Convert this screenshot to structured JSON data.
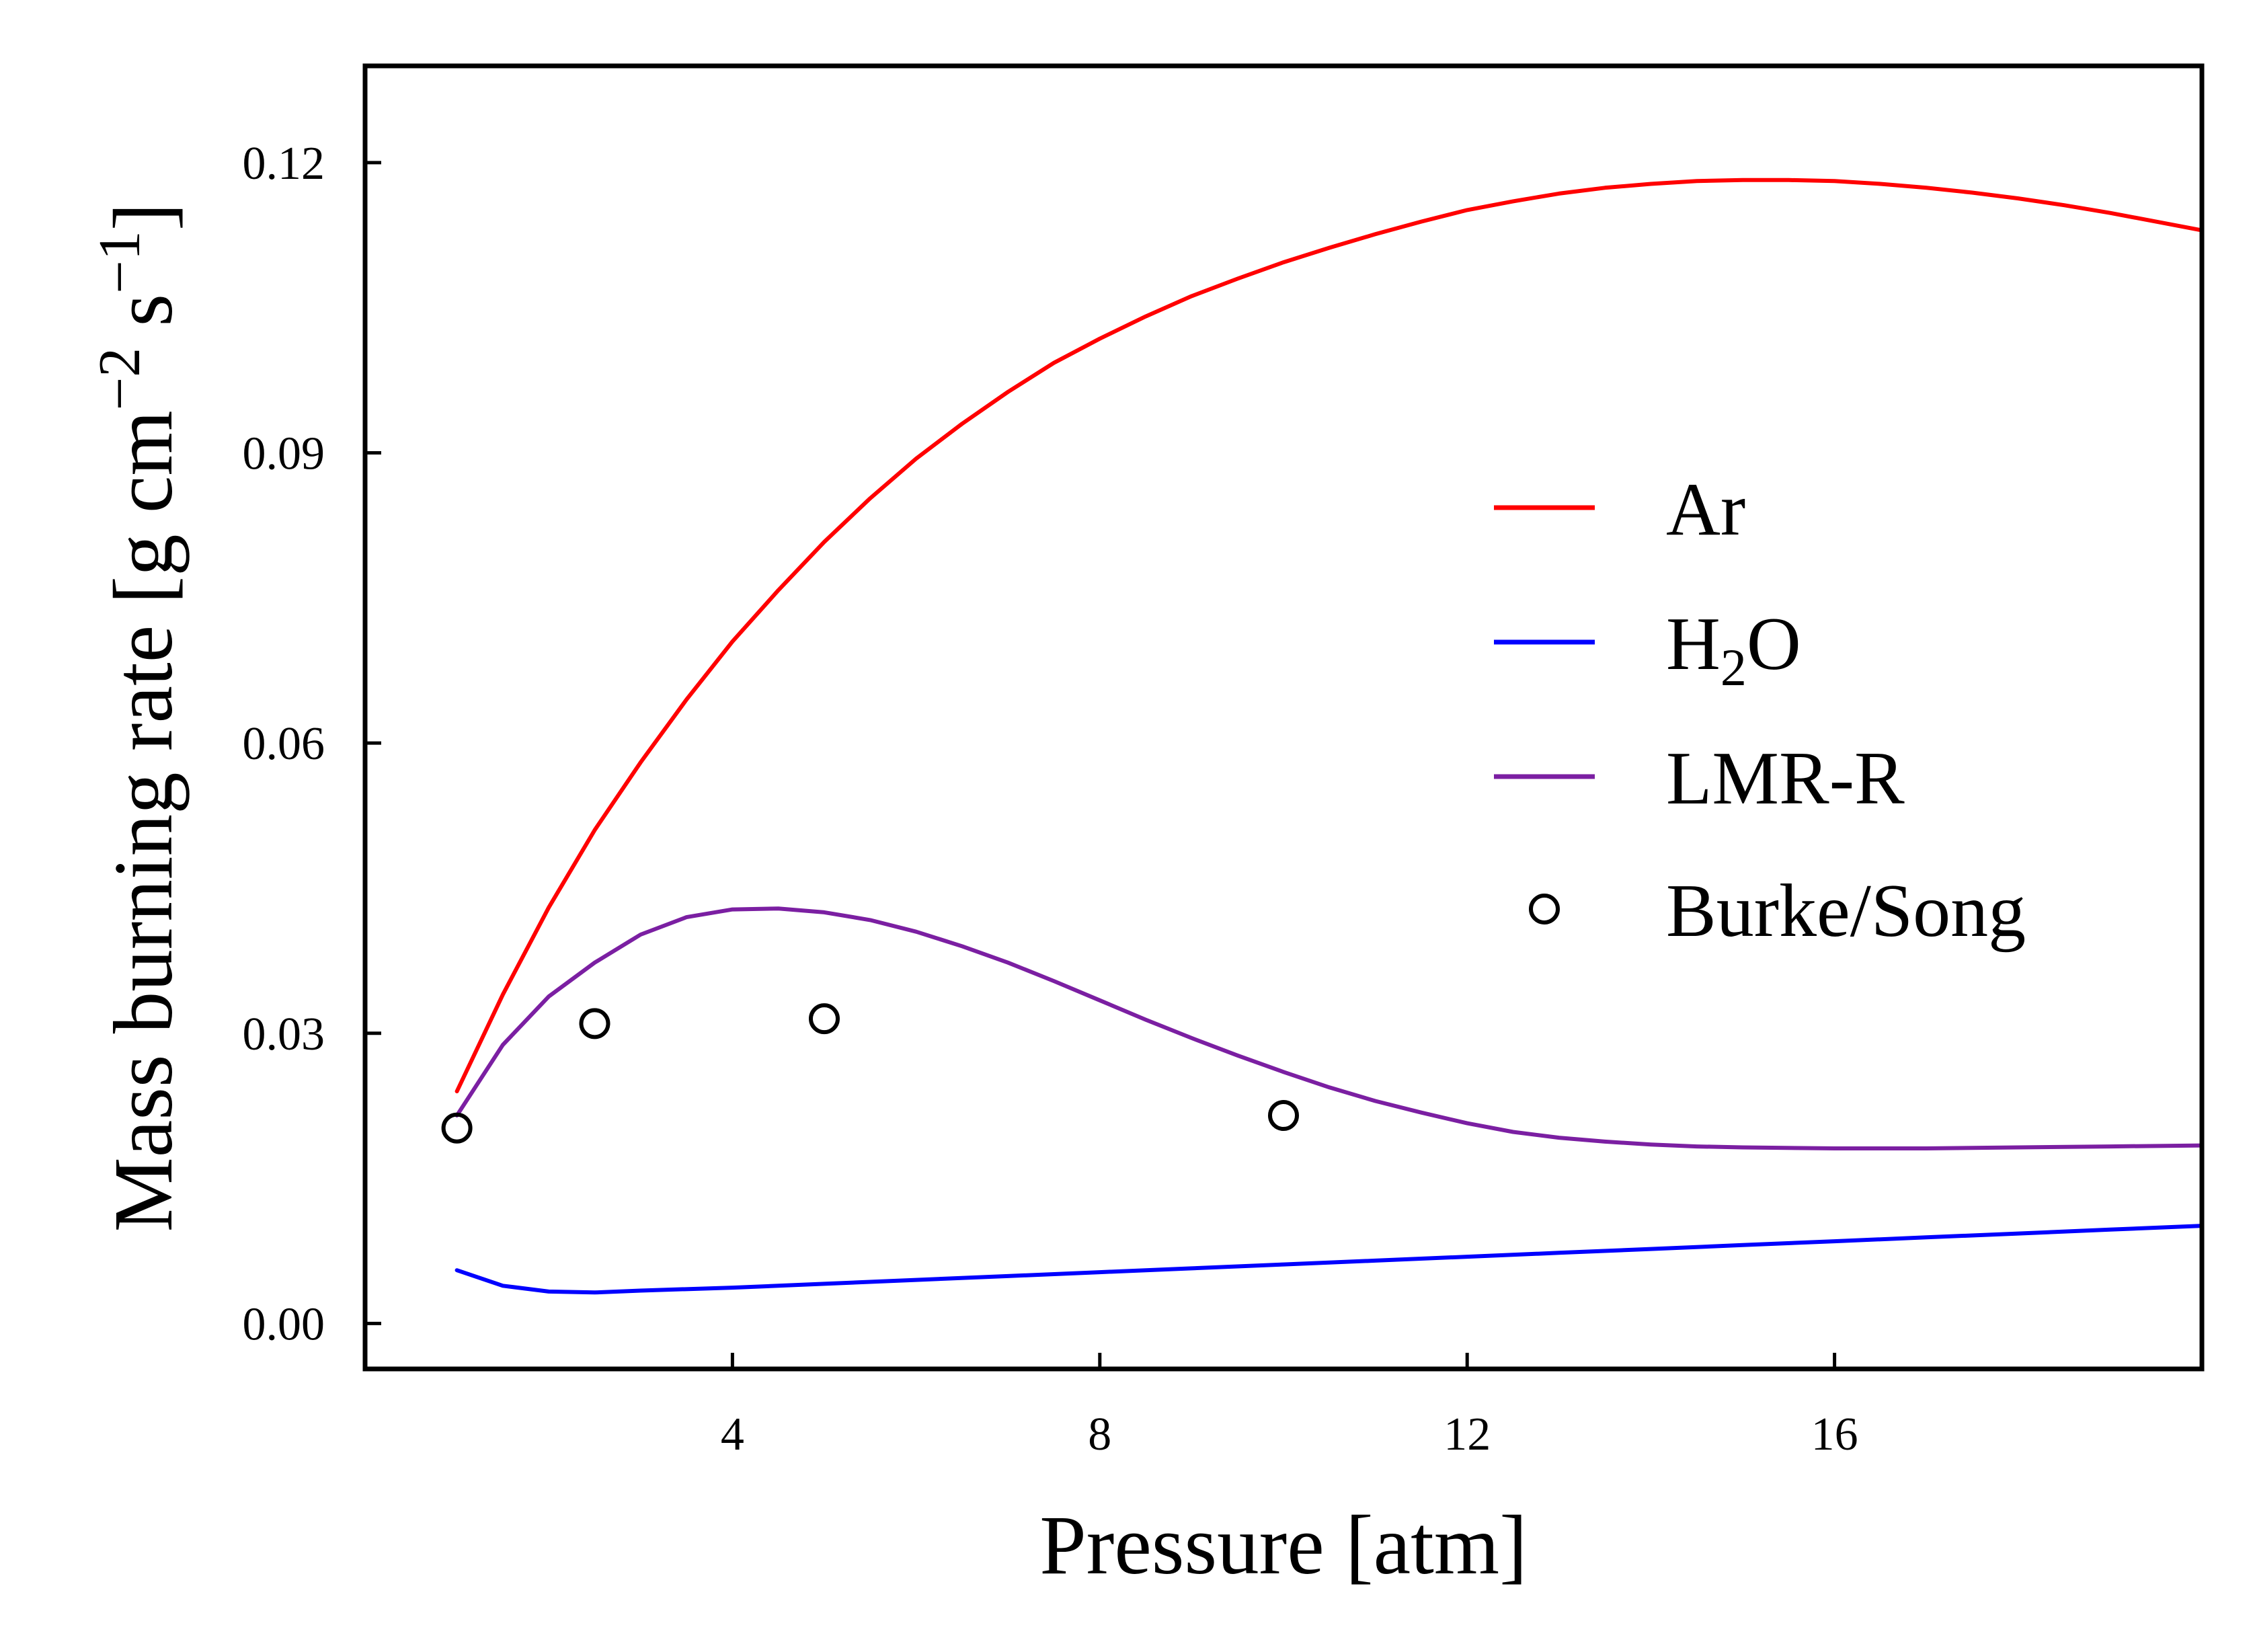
{
  "chart_data": {
    "type": "line",
    "xlabel": "Pressure [atm]",
    "ylabel": "Mass burning rate [g cm",
    "ylabel_sup1": "−2",
    "ylabel_mid": " s",
    "ylabel_sup2": "−1",
    "ylabel_end": "]",
    "xlim": [
      0,
      20
    ],
    "ylim": [
      -0.0047,
      0.13
    ],
    "xticks": [
      4,
      8,
      12,
      16
    ],
    "xtick_labels": [
      "4",
      "8",
      "12",
      "16"
    ],
    "yticks": [
      0.0,
      0.03,
      0.06,
      0.09,
      0.12
    ],
    "ytick_labels": [
      "0.00",
      "0.03",
      "0.06",
      "0.09",
      "0.12"
    ],
    "grid": false,
    "legend_position": "center-right",
    "series": [
      {
        "name": "Ar",
        "color": "#ff0000",
        "style": "line",
        "x": [
          1,
          1.5,
          2,
          2.5,
          3,
          3.5,
          4,
          4.5,
          5,
          5.5,
          6,
          6.5,
          7,
          7.5,
          8,
          8.5,
          9,
          9.5,
          10,
          10.5,
          11,
          11.5,
          12,
          12.5,
          13,
          13.5,
          14,
          14.5,
          15,
          15.5,
          16,
          16.5,
          17,
          17.5,
          18,
          18.5,
          19,
          19.5,
          20
        ],
        "y": [
          0.024,
          0.034,
          0.043,
          0.051,
          0.058,
          0.0645,
          0.0705,
          0.0758,
          0.0808,
          0.0853,
          0.0894,
          0.093,
          0.0963,
          0.0993,
          0.1018,
          0.1041,
          0.1062,
          0.108,
          0.1097,
          0.1112,
          0.1126,
          0.1139,
          0.1151,
          0.116,
          0.1168,
          0.1174,
          0.1178,
          0.1181,
          0.1182,
          0.1182,
          0.1181,
          0.1178,
          0.1174,
          0.1169,
          0.1163,
          0.1156,
          0.1148,
          0.1139,
          0.113
        ]
      },
      {
        "name": "H",
        "name_sub": "2",
        "name_end": "O",
        "color": "#0000ff",
        "style": "line",
        "x": [
          1,
          1.5,
          2,
          2.5,
          3,
          4,
          5,
          6,
          7,
          8,
          9,
          10,
          11,
          12,
          13,
          14,
          15,
          16,
          17,
          18,
          19,
          20
        ],
        "y": [
          0.0055,
          0.0039,
          0.0033,
          0.0032,
          0.0034,
          0.0037,
          0.0041,
          0.0045,
          0.0049,
          0.0053,
          0.0057,
          0.0061,
          0.0065,
          0.0069,
          0.0073,
          0.0077,
          0.0081,
          0.0085,
          0.0089,
          0.0093,
          0.0097,
          0.0101
        ]
      },
      {
        "name": "LMR-R",
        "color": "#7b1fa2",
        "style": "line",
        "x": [
          1,
          1.5,
          2,
          2.5,
          3,
          3.5,
          4,
          4.5,
          5,
          5.5,
          6,
          6.5,
          7,
          7.5,
          8,
          8.5,
          9,
          9.5,
          10,
          10.5,
          11,
          11.5,
          12,
          12.5,
          13,
          13.5,
          14,
          14.5,
          15,
          16,
          17,
          18,
          19,
          20
        ],
        "y": [
          0.0215,
          0.0288,
          0.0338,
          0.0373,
          0.0402,
          0.042,
          0.0428,
          0.0429,
          0.0425,
          0.0417,
          0.0405,
          0.039,
          0.0373,
          0.0354,
          0.0334,
          0.0314,
          0.0295,
          0.0277,
          0.026,
          0.0244,
          0.023,
          0.0218,
          0.0207,
          0.0198,
          0.0192,
          0.0188,
          0.0185,
          0.0183,
          0.0182,
          0.0181,
          0.0181,
          0.0182,
          0.0183,
          0.0184
        ]
      },
      {
        "name": "Burke/Song",
        "color": "#000000",
        "style": "markers",
        "x": [
          1,
          2.5,
          5,
          10
        ],
        "y": [
          0.0202,
          0.031,
          0.0315,
          0.0215
        ]
      }
    ]
  }
}
